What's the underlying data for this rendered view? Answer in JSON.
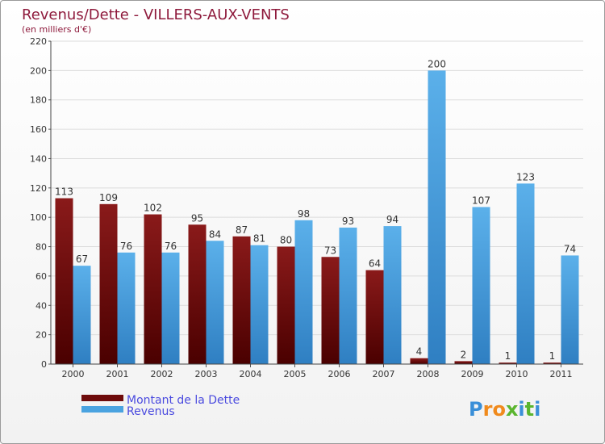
{
  "chart_data": {
    "type": "bar",
    "title": "Revenus/Dette - VILLERS-AUX-VENTS",
    "subtitle": "(en milliers d'€)",
    "categories": [
      "2000",
      "2001",
      "2002",
      "2003",
      "2004",
      "2005",
      "2006",
      "2007",
      "2008",
      "2009",
      "2010",
      "2011"
    ],
    "series": [
      {
        "name": "Montant de la Dette",
        "color": "#6e0b0b",
        "values": [
          113,
          109,
          102,
          95,
          87,
          80,
          73,
          64,
          4,
          2,
          1,
          1
        ]
      },
      {
        "name": "Revenus",
        "color": "#4aa3e0",
        "values": [
          67,
          76,
          76,
          84,
          81,
          98,
          93,
          94,
          200,
          107,
          123,
          74
        ]
      }
    ],
    "ylim": [
      0,
      220
    ],
    "yticks": [
      0,
      20,
      40,
      60,
      80,
      100,
      120,
      140,
      160,
      180,
      200,
      220
    ],
    "grid": true,
    "legend": "bottom-left"
  },
  "logo": {
    "text": "Proxiti",
    "letters": [
      "P",
      "r",
      "o",
      "x",
      "i",
      "t",
      "i"
    ],
    "colors": [
      "#3a8fd8",
      "#f08a1c",
      "#f08a1c",
      "#5ab52f",
      "#3a8fd8",
      "#5ab52f",
      "#3a8fd8"
    ]
  }
}
